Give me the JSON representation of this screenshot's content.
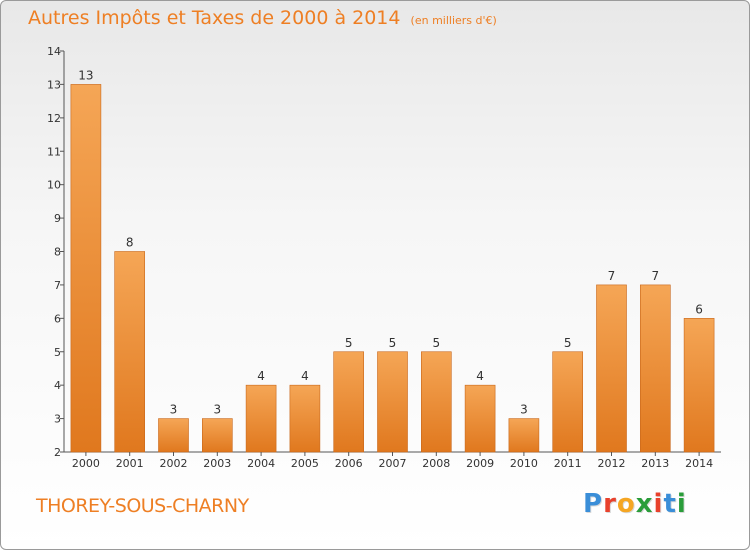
{
  "title": {
    "main": "Autres Impôts et Taxes de 2000 à 2014",
    "unit": "(en milliers d'€)"
  },
  "commune": "THOREY-SOUS-CHARNY",
  "logo": {
    "letters": [
      "P",
      "r",
      "o",
      "x",
      "i",
      "t",
      "i"
    ],
    "colors": [
      "#3a8ed8",
      "#e8412c",
      "#f5a623",
      "#2a9d3a",
      "#e8412c",
      "#3a8ed8",
      "#2a9d3a"
    ]
  },
  "chart_data": {
    "type": "bar",
    "categories": [
      "2000",
      "2001",
      "2002",
      "2003",
      "2004",
      "2005",
      "2006",
      "2007",
      "2008",
      "2009",
      "2010",
      "2011",
      "2012",
      "2013",
      "2014"
    ],
    "values": [
      13,
      8,
      3,
      3,
      4,
      4,
      5,
      5,
      5,
      4,
      3,
      5,
      7,
      7,
      6
    ],
    "ylim": [
      2,
      14
    ],
    "yticks": [
      2,
      3,
      4,
      5,
      6,
      7,
      8,
      9,
      10,
      11,
      12,
      13,
      14
    ],
    "grid": false,
    "colors": {
      "bar_top": "#f5a656",
      "bar_bottom": "#e0781e",
      "bar_stroke": "#c8671a"
    }
  }
}
